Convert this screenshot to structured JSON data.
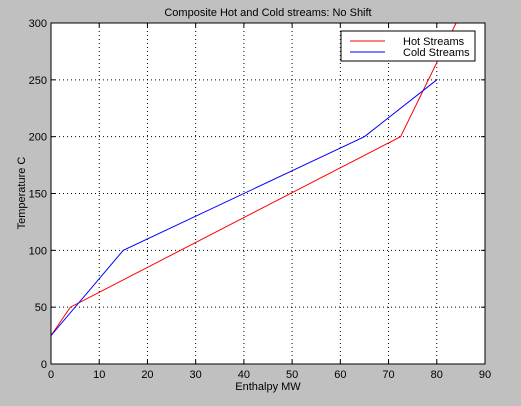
{
  "chart_data": {
    "type": "line",
    "title": "Composite Hot and Cold streams: No Shift",
    "xlabel": "Enthalpy MW",
    "ylabel": "Temperature C",
    "xlim": [
      0,
      90
    ],
    "ylim": [
      0,
      300
    ],
    "xticks": [
      0,
      10,
      20,
      30,
      40,
      50,
      60,
      70,
      80,
      90
    ],
    "yticks": [
      0,
      50,
      100,
      150,
      200,
      250,
      300
    ],
    "grid": true,
    "legend_position": "top-right",
    "series": [
      {
        "name": "Hot Streams",
        "color": "#ff0000",
        "x": [
          0,
          4,
          72.5,
          84
        ],
        "y": [
          25,
          50,
          200,
          300
        ]
      },
      {
        "name": "Cold Streams",
        "color": "#0000ff",
        "x": [
          0,
          15,
          65,
          80
        ],
        "y": [
          25,
          100,
          200,
          250
        ]
      }
    ]
  },
  "colors": {
    "figure_background": "#c0c0c0",
    "axes_background": "#ffffff"
  }
}
